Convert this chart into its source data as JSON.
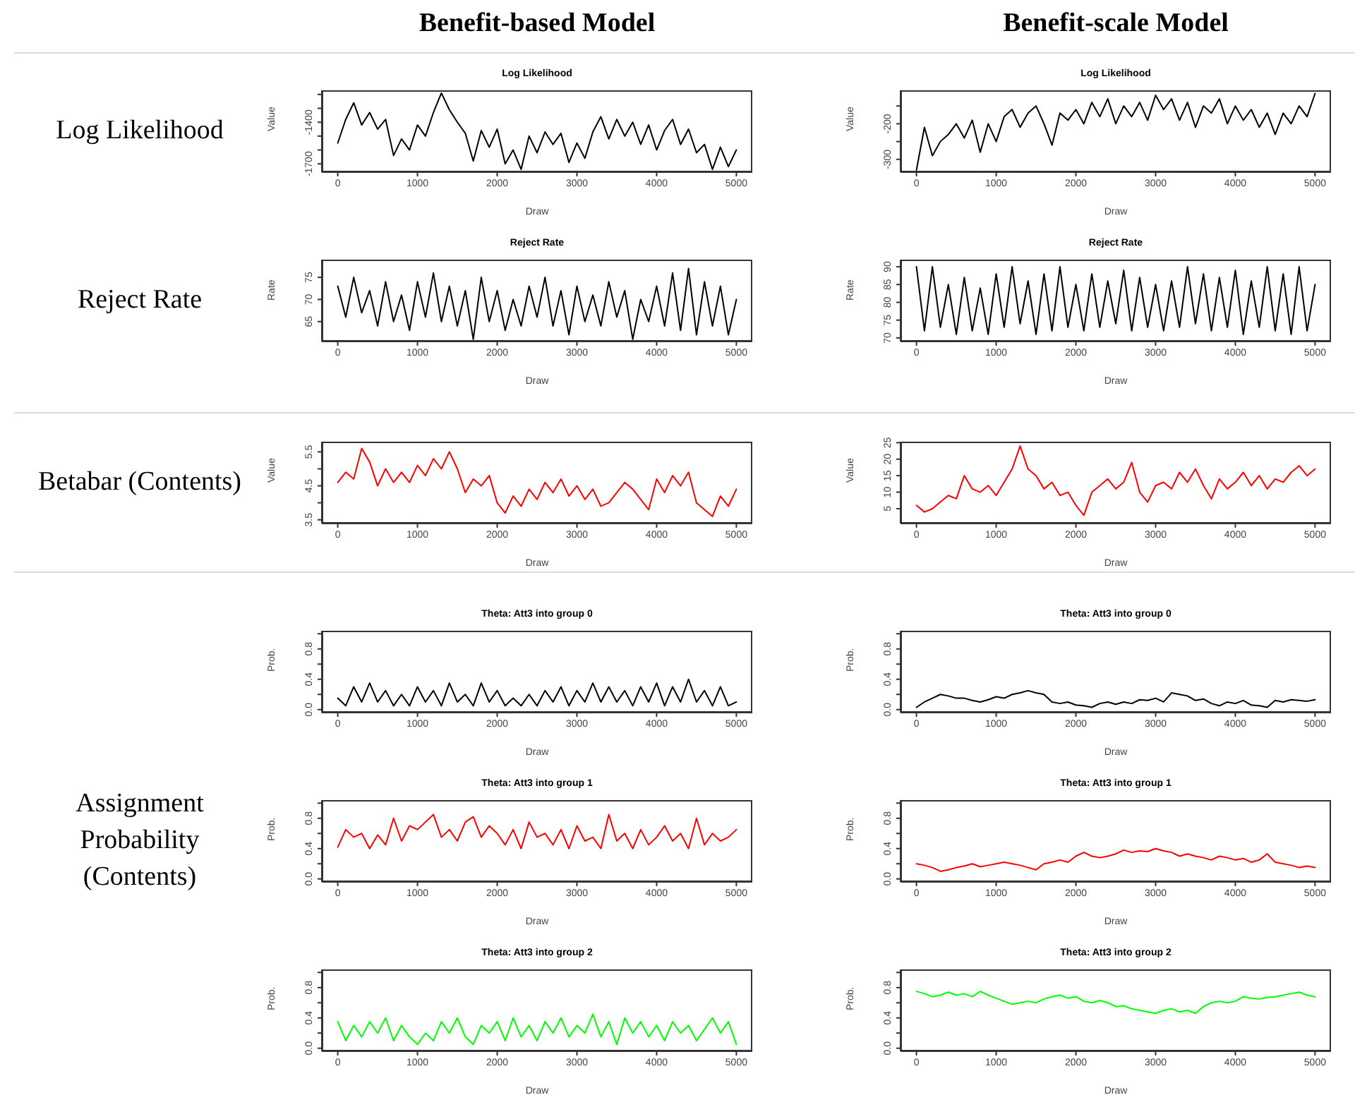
{
  "chart_data": [
    {
      "type": "line",
      "title": "Log Likelihood",
      "xlabel": "Draw",
      "ylabel": "Value",
      "annotations": [
        "Benefit-based Model",
        "Log Likelihood"
      ],
      "color": "#000000",
      "xlim": [
        -200,
        5200
      ],
      "xticks": [
        0,
        1000,
        2000,
        3000,
        4000,
        5000
      ],
      "ylim": [
        -1760,
        -1170
      ],
      "yticks": [
        {
          "value": -1700,
          "label": "-1700"
        },
        {
          "value": -1600,
          "label": null
        },
        {
          "value": -1500,
          "label": null
        },
        {
          "value": -1400,
          "label": "-1400"
        },
        {
          "value": -1300,
          "label": null
        },
        {
          "value": -1200,
          "label": null
        }
      ],
      "x": [
        0,
        100,
        200,
        300,
        400,
        500,
        600,
        700,
        800,
        900,
        1000,
        1100,
        1200,
        1300,
        1400,
        1500,
        1600,
        1700,
        1800,
        1900,
        2000,
        2100,
        2200,
        2300,
        2400,
        2500,
        2600,
        2700,
        2800,
        2900,
        3000,
        3100,
        3200,
        3300,
        3400,
        3500,
        3600,
        3700,
        3800,
        3900,
        4000,
        4100,
        4200,
        4300,
        4400,
        4500,
        4600,
        4700,
        4800,
        4900,
        5000
      ],
      "values": [
        -1550,
        -1380,
        -1260,
        -1420,
        -1330,
        -1450,
        -1380,
        -1640,
        -1520,
        -1600,
        -1420,
        -1500,
        -1330,
        -1190,
        -1310,
        -1400,
        -1480,
        -1680,
        -1460,
        -1580,
        -1450,
        -1700,
        -1600,
        -1740,
        -1500,
        -1620,
        -1470,
        -1560,
        -1480,
        -1690,
        -1550,
        -1660,
        -1470,
        -1360,
        -1520,
        -1380,
        -1500,
        -1400,
        -1560,
        -1420,
        -1600,
        -1460,
        -1380,
        -1560,
        -1450,
        -1620,
        -1560,
        -1740,
        -1580,
        -1720,
        -1600
      ]
    },
    {
      "type": "line",
      "title": "Log Likelihood",
      "xlabel": "Draw",
      "ylabel": "Value",
      "annotations": [
        "Benefit-scale Model"
      ],
      "color": "#000000",
      "xlim": [
        -200,
        5200
      ],
      "xticks": [
        0,
        1000,
        2000,
        3000,
        4000,
        5000
      ],
      "ylim": [
        -336,
        -106
      ],
      "yticks": [
        {
          "value": -300,
          "label": "-300"
        },
        {
          "value": -250,
          "label": null
        },
        {
          "value": -200,
          "label": "-200"
        },
        {
          "value": -150,
          "label": null
        }
      ],
      "x": [
        0,
        100,
        200,
        300,
        400,
        500,
        600,
        700,
        800,
        900,
        1000,
        1100,
        1200,
        1300,
        1400,
        1500,
        1600,
        1700,
        1800,
        1900,
        2000,
        2100,
        2200,
        2300,
        2400,
        2500,
        2600,
        2700,
        2800,
        2900,
        3000,
        3100,
        3200,
        3300,
        3400,
        3500,
        3600,
        3700,
        3800,
        3900,
        4000,
        4100,
        4200,
        4300,
        4400,
        4500,
        4600,
        4700,
        4800,
        4900,
        5000
      ],
      "values": [
        -330,
        -210,
        -290,
        -250,
        -230,
        -200,
        -240,
        -190,
        -280,
        -200,
        -250,
        -180,
        -160,
        -210,
        -170,
        -150,
        -200,
        -260,
        -170,
        -190,
        -160,
        -200,
        -140,
        -180,
        -130,
        -200,
        -150,
        -180,
        -140,
        -190,
        -120,
        -160,
        -130,
        -190,
        -140,
        -210,
        -150,
        -170,
        -130,
        -200,
        -150,
        -190,
        -160,
        -210,
        -170,
        -230,
        -170,
        -200,
        -150,
        -180,
        -115
      ]
    },
    {
      "type": "line",
      "title": "Reject Rate",
      "xlabel": "Draw",
      "ylabel": "Rate",
      "annotations": [
        "Reject Rate"
      ],
      "color": "#000000",
      "xlim": [
        -200,
        5200
      ],
      "xticks": [
        0,
        1000,
        2000,
        3000,
        4000,
        5000
      ],
      "ylim": [
        60.5,
        79
      ],
      "yticks": [
        65,
        70,
        75
      ],
      "x": [
        0,
        100,
        200,
        300,
        400,
        500,
        600,
        700,
        800,
        900,
        1000,
        1100,
        1200,
        1300,
        1400,
        1500,
        1600,
        1700,
        1800,
        1900,
        2000,
        2100,
        2200,
        2300,
        2400,
        2500,
        2600,
        2700,
        2800,
        2900,
        3000,
        3100,
        3200,
        3300,
        3400,
        3500,
        3600,
        3700,
        3800,
        3900,
        4000,
        4100,
        4200,
        4300,
        4400,
        4500,
        4600,
        4700,
        4800,
        4900,
        5000
      ],
      "values": [
        73,
        66,
        75,
        67,
        72,
        64,
        74,
        65,
        71,
        63,
        74,
        66,
        76,
        65,
        73,
        64,
        72,
        61,
        75,
        65,
        72,
        63,
        70,
        64,
        73,
        66,
        75,
        64,
        72,
        62,
        73,
        65,
        71,
        64,
        74,
        66,
        72,
        61,
        70,
        65,
        73,
        64,
        76,
        63,
        77,
        62,
        74,
        64,
        73,
        62,
        70
      ]
    },
    {
      "type": "line",
      "title": "Reject Rate",
      "xlabel": "Draw",
      "ylabel": "Rate",
      "color": "#000000",
      "xlim": [
        -200,
        5200
      ],
      "xticks": [
        0,
        1000,
        2000,
        3000,
        4000,
        5000
      ],
      "ylim": [
        69,
        92
      ],
      "yticks": [
        70,
        75,
        80,
        85,
        90
      ],
      "x": [
        0,
        100,
        200,
        300,
        400,
        500,
        600,
        700,
        800,
        900,
        1000,
        1100,
        1200,
        1300,
        1400,
        1500,
        1600,
        1700,
        1800,
        1900,
        2000,
        2100,
        2200,
        2300,
        2400,
        2500,
        2600,
        2700,
        2800,
        2900,
        3000,
        3100,
        3200,
        3300,
        3400,
        3500,
        3600,
        3700,
        3800,
        3900,
        4000,
        4100,
        4200,
        4300,
        4400,
        4500,
        4600,
        4700,
        4800,
        4900,
        5000
      ],
      "values": [
        90,
        72,
        90,
        73,
        85,
        71,
        87,
        72,
        84,
        71,
        88,
        73,
        90,
        74,
        86,
        71,
        88,
        72,
        90,
        73,
        85,
        72,
        88,
        73,
        86,
        74,
        89,
        72,
        87,
        73,
        85,
        72,
        86,
        73,
        90,
        74,
        88,
        72,
        87,
        73,
        89,
        71,
        86,
        73,
        90,
        72,
        88,
        71,
        90,
        72,
        85
      ]
    },
    {
      "type": "line",
      "xlabel": "Draw",
      "ylabel": "Value",
      "annotations": [
        "Betabar (Contents)"
      ],
      "color": "#ff0000",
      "xlim": [
        -200,
        5200
      ],
      "xticks": [
        0,
        1000,
        2000,
        3000,
        4000,
        5000
      ],
      "ylim": [
        3.39,
        5.8
      ],
      "yticks": [
        3.5,
        {
          "value": 4,
          "label": null
        },
        4.5,
        {
          "value": 5,
          "label": null
        },
        5.5
      ],
      "x": [
        0,
        100,
        200,
        300,
        400,
        500,
        600,
        700,
        800,
        900,
        1000,
        1100,
        1200,
        1300,
        1400,
        1500,
        1600,
        1700,
        1800,
        1900,
        2000,
        2100,
        2200,
        2300,
        2400,
        2500,
        2600,
        2700,
        2800,
        2900,
        3000,
        3100,
        3200,
        3300,
        3400,
        3500,
        3600,
        3700,
        3800,
        3900,
        4000,
        4100,
        4200,
        4300,
        4400,
        4500,
        4600,
        4700,
        4800,
        4900,
        5000
      ],
      "values": [
        4.6,
        4.9,
        4.7,
        5.6,
        5.2,
        4.5,
        5.0,
        4.6,
        4.9,
        4.6,
        5.1,
        4.8,
        5.3,
        5.0,
        5.5,
        5.0,
        4.3,
        4.7,
        4.5,
        4.8,
        4.0,
        3.7,
        4.2,
        3.9,
        4.4,
        4.1,
        4.6,
        4.3,
        4.7,
        4.2,
        4.5,
        4.1,
        4.4,
        3.9,
        4.0,
        4.3,
        4.6,
        4.4,
        4.1,
        3.8,
        4.7,
        4.3,
        4.8,
        4.5,
        4.9,
        4.0,
        3.8,
        3.6,
        4.2,
        3.9,
        4.4
      ]
    },
    {
      "type": "line",
      "xlabel": "Draw",
      "ylabel": "Value",
      "color": "#ff0000",
      "xlim": [
        -200,
        5200
      ],
      "xticks": [
        0,
        1000,
        2000,
        3000,
        4000,
        5000
      ],
      "ylim": [
        0.5,
        25.3
      ],
      "yticks": [
        5,
        10,
        15,
        20,
        25
      ],
      "x": [
        0,
        100,
        200,
        300,
        400,
        500,
        600,
        700,
        800,
        900,
        1000,
        1100,
        1200,
        1300,
        1400,
        1500,
        1600,
        1700,
        1800,
        1900,
        2000,
        2100,
        2200,
        2300,
        2400,
        2500,
        2600,
        2700,
        2800,
        2900,
        3000,
        3100,
        3200,
        3300,
        3400,
        3500,
        3600,
        3700,
        3800,
        3900,
        4000,
        4100,
        4200,
        4300,
        4400,
        4500,
        4600,
        4700,
        4800,
        4900,
        5000
      ],
      "values": [
        6,
        4,
        5,
        7,
        9,
        8,
        15,
        11,
        10,
        12,
        9,
        13,
        17,
        24,
        17,
        15,
        11,
        13,
        9,
        10,
        6,
        3,
        10,
        12,
        14,
        11,
        13,
        19,
        10,
        7,
        12,
        13,
        11,
        16,
        13,
        17,
        12,
        8,
        14,
        11,
        13,
        16,
        12,
        15,
        11,
        14,
        13,
        16,
        18,
        15,
        17
      ]
    },
    {
      "type": "line",
      "title": "Theta: Att3 into group 0",
      "xlabel": "Draw",
      "ylabel": "Prob.",
      "color": "#000000",
      "xlim": [
        -200,
        5200
      ],
      "xticks": [
        0,
        1000,
        2000,
        3000,
        4000,
        5000
      ],
      "ylim": [
        -0.04,
        1.04
      ],
      "yticks": [
        {
          "value": 0,
          "label": "0.0"
        },
        {
          "value": 0.2,
          "label": null
        },
        0.4,
        {
          "value": 0.6,
          "label": null
        },
        0.8,
        {
          "value": 1,
          "label": null
        }
      ],
      "x": [
        0,
        100,
        200,
        300,
        400,
        500,
        600,
        700,
        800,
        900,
        1000,
        1100,
        1200,
        1300,
        1400,
        1500,
        1600,
        1700,
        1800,
        1900,
        2000,
        2100,
        2200,
        2300,
        2400,
        2500,
        2600,
        2700,
        2800,
        2900,
        3000,
        3100,
        3200,
        3300,
        3400,
        3500,
        3600,
        3700,
        3800,
        3900,
        4000,
        4100,
        4200,
        4300,
        4400,
        4500,
        4600,
        4700,
        4800,
        4900,
        5000
      ],
      "values": [
        0.15,
        0.05,
        0.3,
        0.1,
        0.35,
        0.1,
        0.25,
        0.05,
        0.2,
        0.05,
        0.3,
        0.1,
        0.25,
        0.05,
        0.35,
        0.1,
        0.2,
        0.05,
        0.35,
        0.1,
        0.25,
        0.05,
        0.15,
        0.05,
        0.2,
        0.05,
        0.25,
        0.1,
        0.3,
        0.05,
        0.25,
        0.1,
        0.35,
        0.1,
        0.3,
        0.1,
        0.25,
        0.05,
        0.3,
        0.1,
        0.35,
        0.05,
        0.3,
        0.1,
        0.4,
        0.1,
        0.25,
        0.05,
        0.3,
        0.05,
        0.1
      ]
    },
    {
      "type": "line",
      "title": "Theta: Att3 into group 0",
      "xlabel": "Draw",
      "ylabel": "Prob.",
      "color": "#000000",
      "xlim": [
        -200,
        5200
      ],
      "xticks": [
        0,
        1000,
        2000,
        3000,
        4000,
        5000
      ],
      "ylim": [
        -0.04,
        1.04
      ],
      "yticks": [
        {
          "value": 0,
          "label": "0.0"
        },
        {
          "value": 0.2,
          "label": null
        },
        0.4,
        {
          "value": 0.6,
          "label": null
        },
        0.8,
        {
          "value": 1,
          "label": null
        }
      ],
      "x": [
        0,
        100,
        200,
        300,
        400,
        500,
        600,
        700,
        800,
        900,
        1000,
        1100,
        1200,
        1300,
        1400,
        1500,
        1600,
        1700,
        1800,
        1900,
        2000,
        2100,
        2200,
        2300,
        2400,
        2500,
        2600,
        2700,
        2800,
        2900,
        3000,
        3100,
        3200,
        3300,
        3400,
        3500,
        3600,
        3700,
        3800,
        3900,
        4000,
        4100,
        4200,
        4300,
        4400,
        4500,
        4600,
        4700,
        4800,
        4900,
        5000
      ],
      "values": [
        0.03,
        0.1,
        0.15,
        0.2,
        0.18,
        0.15,
        0.15,
        0.12,
        0.1,
        0.13,
        0.17,
        0.15,
        0.2,
        0.22,
        0.25,
        0.22,
        0.2,
        0.1,
        0.08,
        0.1,
        0.06,
        0.05,
        0.03,
        0.08,
        0.1,
        0.07,
        0.1,
        0.08,
        0.13,
        0.12,
        0.15,
        0.1,
        0.22,
        0.2,
        0.18,
        0.12,
        0.14,
        0.08,
        0.05,
        0.1,
        0.08,
        0.12,
        0.06,
        0.05,
        0.03,
        0.12,
        0.1,
        0.13,
        0.12,
        0.11,
        0.13
      ]
    },
    {
      "type": "line",
      "title": "Theta: Att3 into group 1",
      "xlabel": "Draw",
      "ylabel": "Prob.",
      "annotations": [
        "Assignment Probability (Contents)"
      ],
      "color": "#ff0000",
      "xlim": [
        -200,
        5200
      ],
      "xticks": [
        0,
        1000,
        2000,
        3000,
        4000,
        5000
      ],
      "ylim": [
        -0.04,
        1.04
      ],
      "yticks": [
        {
          "value": 0,
          "label": "0.0"
        },
        {
          "value": 0.2,
          "label": null
        },
        0.4,
        {
          "value": 0.6,
          "label": null
        },
        0.8,
        {
          "value": 1,
          "label": null
        }
      ],
      "x": [
        0,
        100,
        200,
        300,
        400,
        500,
        600,
        700,
        800,
        900,
        1000,
        1100,
        1200,
        1300,
        1400,
        1500,
        1600,
        1700,
        1800,
        1900,
        2000,
        2100,
        2200,
        2300,
        2400,
        2500,
        2600,
        2700,
        2800,
        2900,
        3000,
        3100,
        3200,
        3300,
        3400,
        3500,
        3600,
        3700,
        3800,
        3900,
        4000,
        4100,
        4200,
        4300,
        4400,
        4500,
        4600,
        4700,
        4800,
        4900,
        5000
      ],
      "values": [
        0.42,
        0.65,
        0.55,
        0.6,
        0.4,
        0.58,
        0.45,
        0.8,
        0.5,
        0.7,
        0.65,
        0.75,
        0.85,
        0.55,
        0.65,
        0.5,
        0.75,
        0.82,
        0.55,
        0.7,
        0.6,
        0.45,
        0.65,
        0.4,
        0.75,
        0.55,
        0.6,
        0.45,
        0.65,
        0.4,
        0.7,
        0.5,
        0.55,
        0.4,
        0.85,
        0.5,
        0.6,
        0.4,
        0.65,
        0.45,
        0.55,
        0.7,
        0.5,
        0.6,
        0.4,
        0.8,
        0.45,
        0.6,
        0.5,
        0.55,
        0.65
      ]
    },
    {
      "type": "line",
      "title": "Theta: Att3 into group 1",
      "xlabel": "Draw",
      "ylabel": "Prob.",
      "color": "#ff0000",
      "xlim": [
        -200,
        5200
      ],
      "xticks": [
        0,
        1000,
        2000,
        3000,
        4000,
        5000
      ],
      "ylim": [
        -0.04,
        1.04
      ],
      "yticks": [
        {
          "value": 0,
          "label": "0.0"
        },
        {
          "value": 0.2,
          "label": null
        },
        0.4,
        {
          "value": 0.6,
          "label": null
        },
        0.8,
        {
          "value": 1,
          "label": null
        }
      ],
      "x": [
        0,
        100,
        200,
        300,
        400,
        500,
        600,
        700,
        800,
        900,
        1000,
        1100,
        1200,
        1300,
        1400,
        1500,
        1600,
        1700,
        1800,
        1900,
        2000,
        2100,
        2200,
        2300,
        2400,
        2500,
        2600,
        2700,
        2800,
        2900,
        3000,
        3100,
        3200,
        3300,
        3400,
        3500,
        3600,
        3700,
        3800,
        3900,
        4000,
        4100,
        4200,
        4300,
        4400,
        4500,
        4600,
        4700,
        4800,
        4900,
        5000
      ],
      "values": [
        0.2,
        0.18,
        0.15,
        0.1,
        0.12,
        0.15,
        0.17,
        0.2,
        0.16,
        0.18,
        0.2,
        0.22,
        0.2,
        0.18,
        0.15,
        0.12,
        0.2,
        0.22,
        0.25,
        0.22,
        0.3,
        0.35,
        0.3,
        0.28,
        0.3,
        0.33,
        0.38,
        0.35,
        0.37,
        0.36,
        0.4,
        0.37,
        0.35,
        0.3,
        0.33,
        0.3,
        0.28,
        0.25,
        0.3,
        0.28,
        0.25,
        0.27,
        0.22,
        0.25,
        0.33,
        0.22,
        0.2,
        0.18,
        0.15,
        0.17,
        0.15
      ]
    },
    {
      "type": "line",
      "title": "Theta: Att3 into group 2",
      "xlabel": "Draw",
      "ylabel": "Prob.",
      "color": "#00ff00",
      "xlim": [
        -200,
        5200
      ],
      "xticks": [
        0,
        1000,
        2000,
        3000,
        4000,
        5000
      ],
      "ylim": [
        -0.04,
        1.04
      ],
      "yticks": [
        {
          "value": 0,
          "label": "0.0"
        },
        {
          "value": 0.2,
          "label": null
        },
        0.4,
        {
          "value": 0.6,
          "label": null
        },
        0.8,
        {
          "value": 1,
          "label": null
        }
      ],
      "x": [
        0,
        100,
        200,
        300,
        400,
        500,
        600,
        700,
        800,
        900,
        1000,
        1100,
        1200,
        1300,
        1400,
        1500,
        1600,
        1700,
        1800,
        1900,
        2000,
        2100,
        2200,
        2300,
        2400,
        2500,
        2600,
        2700,
        2800,
        2900,
        3000,
        3100,
        3200,
        3300,
        3400,
        3500,
        3600,
        3700,
        3800,
        3900,
        4000,
        4100,
        4200,
        4300,
        4400,
        4500,
        4600,
        4700,
        4800,
        4900,
        5000
      ],
      "values": [
        0.35,
        0.1,
        0.3,
        0.15,
        0.35,
        0.2,
        0.4,
        0.1,
        0.3,
        0.15,
        0.05,
        0.2,
        0.1,
        0.35,
        0.2,
        0.4,
        0.15,
        0.05,
        0.3,
        0.2,
        0.35,
        0.1,
        0.4,
        0.15,
        0.3,
        0.1,
        0.35,
        0.2,
        0.4,
        0.15,
        0.3,
        0.2,
        0.45,
        0.15,
        0.35,
        0.05,
        0.4,
        0.2,
        0.35,
        0.15,
        0.3,
        0.1,
        0.35,
        0.2,
        0.3,
        0.1,
        0.25,
        0.4,
        0.2,
        0.35,
        0.05
      ]
    },
    {
      "type": "line",
      "title": "Theta: Att3 into group 2",
      "xlabel": "Draw",
      "ylabel": "Prob.",
      "color": "#00ff00",
      "xlim": [
        -200,
        5200
      ],
      "xticks": [
        0,
        1000,
        2000,
        3000,
        4000,
        5000
      ],
      "ylim": [
        -0.04,
        1.04
      ],
      "yticks": [
        {
          "value": 0,
          "label": "0.0"
        },
        {
          "value": 0.2,
          "label": null
        },
        0.4,
        {
          "value": 0.6,
          "label": null
        },
        0.8,
        {
          "value": 1,
          "label": null
        }
      ],
      "x": [
        0,
        100,
        200,
        300,
        400,
        500,
        600,
        700,
        800,
        900,
        1000,
        1100,
        1200,
        1300,
        1400,
        1500,
        1600,
        1700,
        1800,
        1900,
        2000,
        2100,
        2200,
        2300,
        2400,
        2500,
        2600,
        2700,
        2800,
        2900,
        3000,
        3100,
        3200,
        3300,
        3400,
        3500,
        3600,
        3700,
        3800,
        3900,
        4000,
        4100,
        4200,
        4300,
        4400,
        4500,
        4600,
        4700,
        4800,
        4900,
        5000
      ],
      "values": [
        0.75,
        0.72,
        0.68,
        0.7,
        0.74,
        0.7,
        0.72,
        0.68,
        0.75,
        0.7,
        0.66,
        0.62,
        0.58,
        0.6,
        0.62,
        0.6,
        0.65,
        0.68,
        0.7,
        0.66,
        0.68,
        0.62,
        0.6,
        0.63,
        0.6,
        0.55,
        0.56,
        0.52,
        0.5,
        0.48,
        0.46,
        0.5,
        0.52,
        0.48,
        0.5,
        0.46,
        0.55,
        0.6,
        0.62,
        0.6,
        0.62,
        0.68,
        0.66,
        0.65,
        0.67,
        0.68,
        0.7,
        0.72,
        0.74,
        0.7,
        0.68
      ]
    }
  ]
}
